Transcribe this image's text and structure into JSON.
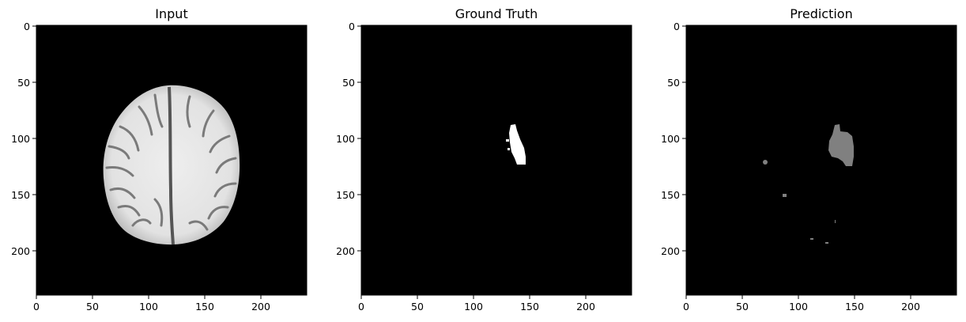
{
  "panels": [
    {
      "title": "Input"
    },
    {
      "title": "Ground Truth"
    },
    {
      "title": "Prediction"
    }
  ],
  "axes": {
    "x_ticks": [
      "0",
      "50",
      "100",
      "150",
      "200"
    ],
    "y_ticks": [
      "0",
      "50",
      "100",
      "150",
      "200"
    ]
  },
  "colors": {
    "background": "#000000",
    "brain": "#e6e6e6",
    "ground_truth_mask": "#ffffff",
    "prediction_mask": "#808080"
  }
}
